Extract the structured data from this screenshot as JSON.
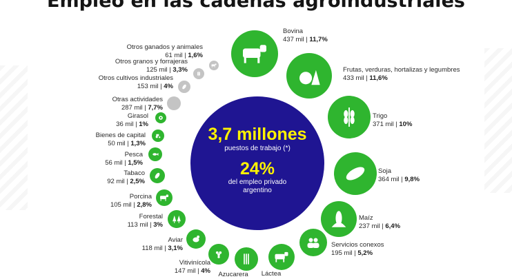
{
  "header": {
    "title": "Empleo en las cadenas agroindustriales"
  },
  "center": {
    "headline": "3,7 millones",
    "headline_sub": "puestos de trabajo (*)",
    "percent": "24%",
    "percent_sub_1": "del empleo privado",
    "percent_sub_2": "argentino"
  },
  "colors": {
    "green": "#2fb52f",
    "grey": "#c4c4c4",
    "navy": "#1f1592",
    "yellow": "#fff200"
  },
  "chart_data": {
    "type": "bubble",
    "title": "Empleo en las cadenas agroindustriales",
    "total": "3,7 millones",
    "share_of_private_employment": "24%",
    "unit": "mil",
    "items": [
      {
        "name": "Bovina",
        "value": 437,
        "value_label": "437 mil",
        "share": "11,7%",
        "icon": "cow-icon"
      },
      {
        "name": "Frutas, verduras, hortalizas y legumbres",
        "value": 433,
        "value_label": "433 mil",
        "share": "11,6%",
        "icon": "fruit-vegetable-icon"
      },
      {
        "name": "Trigo",
        "value": 371,
        "value_label": "371 mil",
        "share": "10%",
        "icon": "wheat-icon"
      },
      {
        "name": "Soja",
        "value": 364,
        "value_label": "364 mil",
        "share": "9,8%",
        "icon": "soybean-icon"
      },
      {
        "name": "Maíz",
        "value": 237,
        "value_label": "237 mil",
        "share": "6,4%",
        "icon": "corn-icon"
      },
      {
        "name": "Servicios conexos",
        "value": 195,
        "value_label": "195 mil",
        "share": "5,2%",
        "icon": "people-icon"
      },
      {
        "name": "Láctea",
        "value": null,
        "value_label": "",
        "share": "",
        "icon": "dairy-cow-icon"
      },
      {
        "name": "Azucarera",
        "value": null,
        "value_label": "",
        "share": "",
        "icon": "sugarcane-icon"
      },
      {
        "name": "Vitivinícola",
        "value": 147,
        "value_label": "147 mil",
        "share": "4%",
        "icon": "grapes-icon"
      },
      {
        "name": "Aviar",
        "value": 118,
        "value_label": "118 mil",
        "share": "3,1%",
        "icon": "chicken-icon"
      },
      {
        "name": "Forestal",
        "value": 113,
        "value_label": "113 mil",
        "share": "3%",
        "icon": "trees-icon"
      },
      {
        "name": "Porcina",
        "value": 105,
        "value_label": "105 mil",
        "share": "2,8%",
        "icon": "pig-icon"
      },
      {
        "name": "Tabaco",
        "value": 92,
        "value_label": "92 mil",
        "share": "2,5%",
        "icon": "tobacco-leaf-icon"
      },
      {
        "name": "Pesca",
        "value": 56,
        "value_label": "56 mil",
        "share": "1,5%",
        "icon": "fish-icon"
      },
      {
        "name": "Bienes de capital",
        "value": 50,
        "value_label": "50 mil",
        "share": "1,3%",
        "icon": "tractor-icon"
      },
      {
        "name": "Girasol",
        "value": 36,
        "value_label": "36 mil",
        "share": "1%",
        "icon": "sunflower-icon"
      },
      {
        "name": "Otras actividades",
        "value": 287,
        "value_label": "287 mil",
        "share": "7,7%",
        "icon": "blank-circle"
      },
      {
        "name": "Otros cultivos industriales",
        "value": 153,
        "value_label": "153 mil",
        "share": "4%",
        "icon": "leaf-icon"
      },
      {
        "name": "Otros granos y forrajeras",
        "value": 125,
        "value_label": "125 mil",
        "share": "3,3%",
        "icon": "grain-icon"
      },
      {
        "name": "Otros ganados y animales",
        "value": 61,
        "value_label": "61 mil",
        "share": "1,6%",
        "icon": "goat-icon"
      }
    ]
  }
}
